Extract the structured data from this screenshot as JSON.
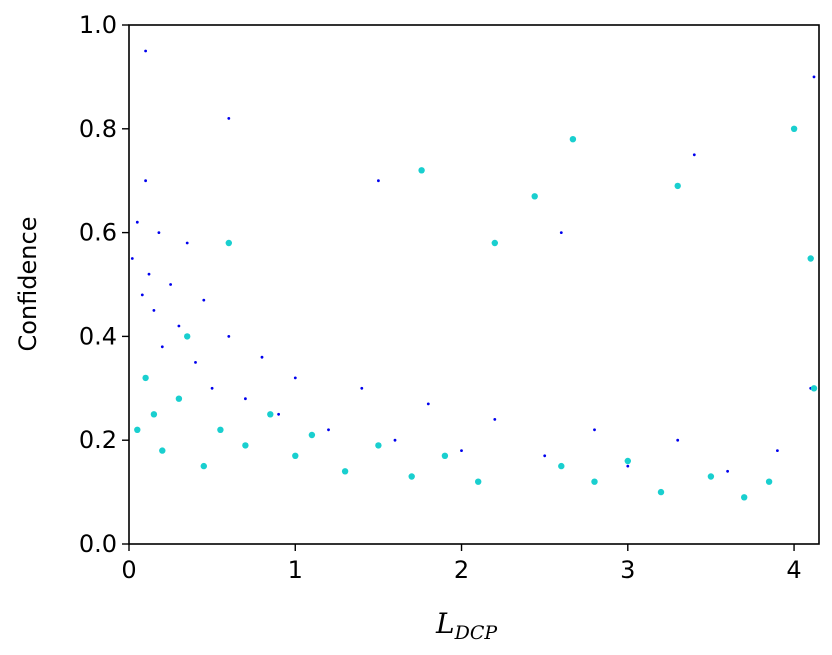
{
  "chart_data": {
    "type": "scatter",
    "title": "",
    "xlabel_main": "L",
    "xlabel_sub": "DCP",
    "ylabel": "Confidence",
    "xlim": [
      0,
      4.15
    ],
    "ylim": [
      0,
      1.0
    ],
    "x_ticks": [
      "0",
      "1",
      "2",
      "3",
      "4"
    ],
    "y_ticks": [
      "0.0",
      "0.2",
      "0.4",
      "0.6",
      "0.8",
      "1.0"
    ],
    "grid": false,
    "legend": "none",
    "series": [
      {
        "color": "#0000ee",
        "marker": "small-dot",
        "points": [
          [
            0.02,
            0.55
          ],
          [
            0.05,
            0.62
          ],
          [
            0.08,
            0.48
          ],
          [
            0.1,
            0.7
          ],
          [
            0.12,
            0.52
          ],
          [
            0.15,
            0.45
          ],
          [
            0.18,
            0.6
          ],
          [
            0.2,
            0.38
          ],
          [
            0.25,
            0.5
          ],
          [
            0.3,
            0.42
          ],
          [
            0.35,
            0.58
          ],
          [
            0.4,
            0.35
          ],
          [
            0.45,
            0.47
          ],
          [
            0.5,
            0.3
          ],
          [
            0.6,
            0.4
          ],
          [
            0.7,
            0.28
          ],
          [
            0.8,
            0.36
          ],
          [
            0.9,
            0.25
          ],
          [
            1.0,
            0.32
          ],
          [
            1.2,
            0.22
          ],
          [
            1.4,
            0.3
          ],
          [
            1.6,
            0.2
          ],
          [
            1.8,
            0.27
          ],
          [
            2.0,
            0.18
          ],
          [
            2.2,
            0.24
          ],
          [
            2.5,
            0.17
          ],
          [
            2.8,
            0.22
          ],
          [
            3.0,
            0.15
          ],
          [
            3.3,
            0.2
          ],
          [
            3.6,
            0.14
          ],
          [
            3.9,
            0.18
          ],
          [
            4.1,
            0.3
          ],
          [
            0.1,
            0.95
          ],
          [
            0.6,
            0.82
          ],
          [
            1.5,
            0.7
          ],
          [
            2.6,
            0.6
          ],
          [
            3.4,
            0.75
          ],
          [
            4.12,
            0.9
          ]
        ]
      },
      {
        "color": "#19cfcf",
        "marker": "large-dot",
        "points": [
          [
            0.05,
            0.22
          ],
          [
            0.1,
            0.32
          ],
          [
            0.15,
            0.25
          ],
          [
            0.2,
            0.18
          ],
          [
            0.3,
            0.28
          ],
          [
            0.35,
            0.4
          ],
          [
            0.45,
            0.15
          ],
          [
            0.55,
            0.22
          ],
          [
            0.6,
            0.58
          ],
          [
            0.7,
            0.19
          ],
          [
            0.85,
            0.25
          ],
          [
            1.0,
            0.17
          ],
          [
            1.1,
            0.21
          ],
          [
            1.3,
            0.14
          ],
          [
            1.5,
            0.19
          ],
          [
            1.7,
            0.13
          ],
          [
            1.76,
            0.72
          ],
          [
            1.9,
            0.17
          ],
          [
            2.1,
            0.12
          ],
          [
            2.2,
            0.58
          ],
          [
            2.44,
            0.67
          ],
          [
            2.6,
            0.15
          ],
          [
            2.67,
            0.78
          ],
          [
            2.8,
            0.12
          ],
          [
            3.0,
            0.16
          ],
          [
            3.2,
            0.1
          ],
          [
            3.3,
            0.69
          ],
          [
            3.5,
            0.13
          ],
          [
            3.7,
            0.09
          ],
          [
            3.85,
            0.12
          ],
          [
            4.0,
            0.8
          ],
          [
            4.1,
            0.55
          ],
          [
            4.12,
            0.3
          ]
        ]
      }
    ]
  }
}
